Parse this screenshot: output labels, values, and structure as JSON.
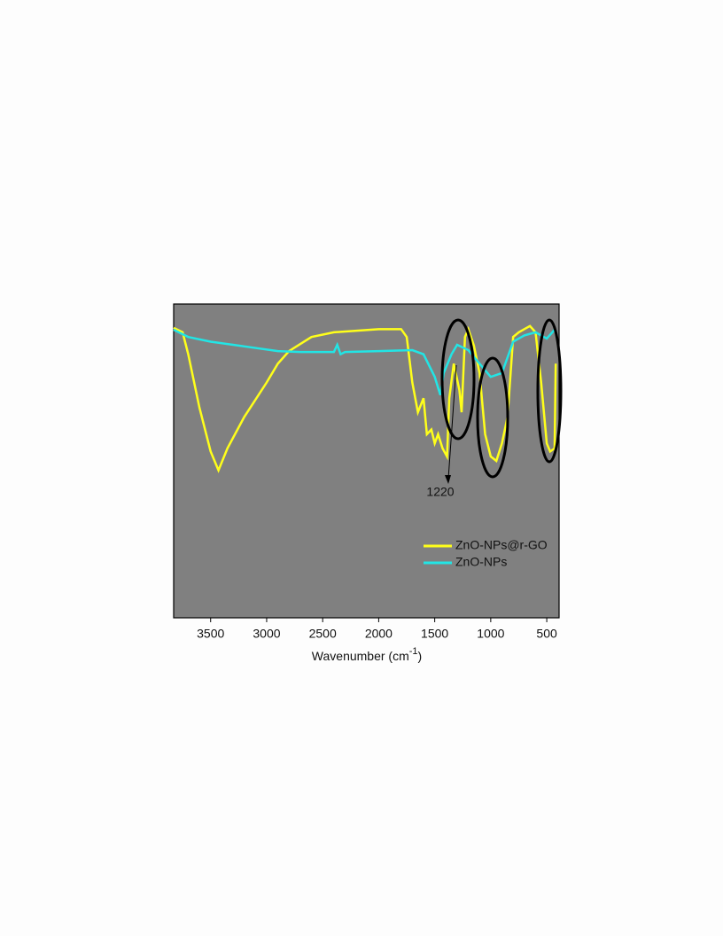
{
  "chart_data": {
    "type": "line",
    "xlabel": [
      "Wavenumber (cm",
      "-1",
      ")"
    ],
    "xlim": [
      3830,
      390
    ],
    "xticks": [
      3500,
      3000,
      2500,
      2000,
      1500,
      1000,
      500
    ],
    "ylim": [
      0,
      100
    ],
    "legend": "lower right",
    "annotation": "1220",
    "series": [
      {
        "name": "ZnO-NPs@r-GO",
        "color": "#ffff1a",
        "x": [
          3830,
          3750,
          3700,
          3600,
          3500,
          3430,
          3350,
          3200,
          3000,
          2900,
          2800,
          2600,
          2400,
          2000,
          1800,
          1750,
          1700,
          1650,
          1600,
          1570,
          1530,
          1500,
          1470,
          1430,
          1390,
          1370,
          1330,
          1280,
          1260,
          1230,
          1200,
          1150,
          1100,
          1050,
          1000,
          950,
          900,
          850,
          800,
          750,
          700,
          650,
          600,
          550,
          500,
          470,
          430,
          420
        ],
        "values": [
          92.4,
          91,
          84,
          67,
          53,
          47,
          54,
          64,
          75,
          81,
          85,
          89.5,
          91,
          92,
          92,
          89.5,
          75,
          65.5,
          70,
          58.5,
          60,
          55.6,
          58.5,
          54,
          51.4,
          70,
          81,
          72.6,
          65.5,
          89.5,
          92,
          86.7,
          78,
          58.5,
          51.4,
          50,
          55.6,
          64,
          89.5,
          91,
          92,
          93,
          91,
          75,
          55.6,
          53,
          54,
          81
        ]
      },
      {
        "name": "ZnO-NPs",
        "color": "#22e5e5",
        "x": [
          3830,
          3700,
          3500,
          3300,
          3100,
          2900,
          2700,
          2400,
          2370,
          2340,
          2300,
          2000,
          1700,
          1600,
          1500,
          1450,
          1420,
          1350,
          1300,
          1200,
          1100,
          1000,
          900,
          800,
          700,
          600,
          500,
          430
        ],
        "values": [
          91.8,
          89.5,
          88,
          87,
          86,
          85,
          84.7,
          84.7,
          87,
          84,
          84.7,
          85,
          85.3,
          84,
          76.8,
          71,
          78,
          84,
          87,
          85.3,
          81,
          76.8,
          78,
          88,
          90,
          91,
          89,
          91.8
        ]
      }
    ]
  }
}
